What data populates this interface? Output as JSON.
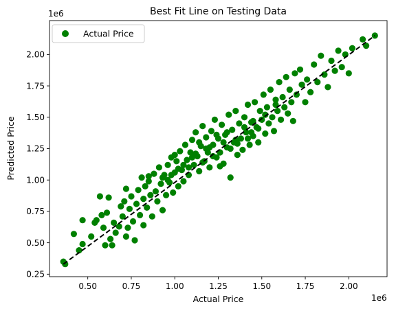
{
  "chart_data": {
    "type": "scatter",
    "title": "Best Fit Line on Testing Data",
    "xlabel": "Actual Price",
    "ylabel": "Predicted Price",
    "x_offset_label": "1e6",
    "y_offset_label": "1e6",
    "xlim": [
      0.28,
      2.22
    ],
    "ylim": [
      0.23,
      2.27
    ],
    "xticks": [
      0.5,
      0.75,
      1.0,
      1.25,
      1.5,
      1.75,
      2.0
    ],
    "xtick_labels": [
      "0.50",
      "0.75",
      "1.00",
      "1.25",
      "1.50",
      "1.75",
      "2.00"
    ],
    "yticks": [
      0.25,
      0.5,
      0.75,
      1.0,
      1.25,
      1.5,
      1.75,
      2.0
    ],
    "ytick_labels": [
      "0.25",
      "0.50",
      "0.75",
      "1.00",
      "1.25",
      "1.50",
      "1.75",
      "2.00"
    ],
    "grid": false,
    "legend": {
      "position": "upper-left",
      "entries": [
        "Actual Price"
      ]
    },
    "series": [
      {
        "name": "Actual Price",
        "color": "#008000",
        "points": [
          [
            0.36,
            0.35
          ],
          [
            0.37,
            0.33
          ],
          [
            0.42,
            0.57
          ],
          [
            0.45,
            0.44
          ],
          [
            0.47,
            0.49
          ],
          [
            0.47,
            0.68
          ],
          [
            0.52,
            0.55
          ],
          [
            0.54,
            0.66
          ],
          [
            0.55,
            0.68
          ],
          [
            0.57,
            0.87
          ],
          [
            0.58,
            0.72
          ],
          [
            0.59,
            0.62
          ],
          [
            0.6,
            0.48
          ],
          [
            0.61,
            0.74
          ],
          [
            0.62,
            0.86
          ],
          [
            0.63,
            0.53
          ],
          [
            0.64,
            0.48
          ],
          [
            0.65,
            0.66
          ],
          [
            0.66,
            0.58
          ],
          [
            0.68,
            0.63
          ],
          [
            0.69,
            0.79
          ],
          [
            0.7,
            0.71
          ],
          [
            0.71,
            0.83
          ],
          [
            0.72,
            0.55
          ],
          [
            0.72,
            0.93
          ],
          [
            0.73,
            0.62
          ],
          [
            0.74,
            0.77
          ],
          [
            0.75,
            0.87
          ],
          [
            0.76,
            0.67
          ],
          [
            0.77,
            0.52
          ],
          [
            0.78,
            0.81
          ],
          [
            0.79,
            0.92
          ],
          [
            0.8,
            0.72
          ],
          [
            0.81,
            1.02
          ],
          [
            0.82,
            0.85
          ],
          [
            0.82,
            0.64
          ],
          [
            0.83,
            0.95
          ],
          [
            0.84,
            0.78
          ],
          [
            0.85,
            0.99
          ],
          [
            0.86,
            0.88
          ],
          [
            0.87,
            0.71
          ],
          [
            0.88,
            1.05
          ],
          [
            0.89,
            0.91
          ],
          [
            0.9,
            0.83
          ],
          [
            0.91,
            1.1
          ],
          [
            0.92,
            0.97
          ],
          [
            0.93,
            0.76
          ],
          [
            0.94,
            1.04
          ],
          [
            0.95,
            0.88
          ],
          [
            0.96,
            1.12
          ],
          [
            0.97,
            0.98
          ],
          [
            0.98,
            1.18
          ],
          [
            0.99,
            0.9
          ],
          [
            1.0,
            1.06
          ],
          [
            1.01,
            1.15
          ],
          [
            1.02,
            0.95
          ],
          [
            1.03,
            1.23
          ],
          [
            1.04,
            1.08
          ],
          [
            1.05,
            0.99
          ],
          [
            1.06,
            1.28
          ],
          [
            1.07,
            1.16
          ],
          [
            1.08,
            1.04
          ],
          [
            1.09,
            1.22
          ],
          [
            1.1,
            1.32
          ],
          [
            1.11,
            1.12
          ],
          [
            1.12,
            1.38
          ],
          [
            1.13,
            1.19
          ],
          [
            1.14,
            1.07
          ],
          [
            1.15,
            1.27
          ],
          [
            1.16,
            1.43
          ],
          [
            1.17,
            1.15
          ],
          [
            1.18,
            1.34
          ],
          [
            1.19,
            1.22
          ],
          [
            1.2,
            1.1
          ],
          [
            1.21,
            1.39
          ],
          [
            1.22,
            1.28
          ],
          [
            1.23,
            1.48
          ],
          [
            1.24,
            1.18
          ],
          [
            1.25,
            1.33
          ],
          [
            1.26,
            1.22
          ],
          [
            1.27,
            1.44
          ],
          [
            1.28,
            1.13
          ],
          [
            1.29,
            1.36
          ],
          [
            1.3,
            1.26
          ],
          [
            1.31,
            1.52
          ],
          [
            1.32,
            1.02
          ],
          [
            1.33,
            1.4
          ],
          [
            1.34,
            1.3
          ],
          [
            1.35,
            1.55
          ],
          [
            1.36,
            1.2
          ],
          [
            1.37,
            1.45
          ],
          [
            1.38,
            1.33
          ],
          [
            1.39,
            1.24
          ],
          [
            1.4,
            1.5
          ],
          [
            1.41,
            1.38
          ],
          [
            1.42,
            1.6
          ],
          [
            1.43,
            1.28
          ],
          [
            1.44,
            1.46
          ],
          [
            1.45,
            1.35
          ],
          [
            1.46,
            1.62
          ],
          [
            1.47,
            1.42
          ],
          [
            1.48,
            1.3
          ],
          [
            1.49,
            1.55
          ],
          [
            1.5,
            1.48
          ],
          [
            1.51,
            1.68
          ],
          [
            1.52,
            1.37
          ],
          [
            1.53,
            1.58
          ],
          [
            1.54,
            1.45
          ],
          [
            1.55,
            1.72
          ],
          [
            1.56,
            1.5
          ],
          [
            1.57,
            1.39
          ],
          [
            1.58,
            1.64
          ],
          [
            1.59,
            1.55
          ],
          [
            1.6,
            1.78
          ],
          [
            1.61,
            1.48
          ],
          [
            1.62,
            1.66
          ],
          [
            1.63,
            1.58
          ],
          [
            1.64,
            1.82
          ],
          [
            1.65,
            1.53
          ],
          [
            1.66,
            1.72
          ],
          [
            1.67,
            1.62
          ],
          [
            1.68,
            1.47
          ],
          [
            1.69,
            1.85
          ],
          [
            1.7,
            1.68
          ],
          [
            1.72,
            1.88
          ],
          [
            1.73,
            1.76
          ],
          [
            1.75,
            1.62
          ],
          [
            1.76,
            1.8
          ],
          [
            1.78,
            1.7
          ],
          [
            1.8,
            1.92
          ],
          [
            1.82,
            1.78
          ],
          [
            1.84,
            1.99
          ],
          [
            1.86,
            1.84
          ],
          [
            1.88,
            1.74
          ],
          [
            1.9,
            1.95
          ],
          [
            1.92,
            1.87
          ],
          [
            1.94,
            2.03
          ],
          [
            1.96,
            1.9
          ],
          [
            1.98,
            2.0
          ],
          [
            2.0,
            1.85
          ],
          [
            2.02,
            2.05
          ],
          [
            2.08,
            2.12
          ],
          [
            2.1,
            2.07
          ],
          [
            2.15,
            2.15
          ],
          [
            0.85,
            1.03
          ],
          [
            0.93,
            1.02
          ],
          [
            1.0,
            1.2
          ],
          [
            1.05,
            1.12
          ],
          [
            1.12,
            1.21
          ],
          [
            1.18,
            1.25
          ],
          [
            1.22,
            1.19
          ],
          [
            1.28,
            1.3
          ],
          [
            1.35,
            1.32
          ],
          [
            1.4,
            1.42
          ],
          [
            1.45,
            1.47
          ],
          [
            1.52,
            1.52
          ],
          [
            1.58,
            1.6
          ],
          [
            1.26,
            1.11
          ],
          [
            1.14,
            1.3
          ],
          [
            0.96,
            1.0
          ],
          [
            1.08,
            1.1
          ],
          [
            1.3,
            1.38
          ],
          [
            1.36,
            1.29
          ],
          [
            1.44,
            1.38
          ],
          [
            1.2,
            1.26
          ],
          [
            1.24,
            1.36
          ],
          [
            1.16,
            1.14
          ],
          [
            1.1,
            1.18
          ],
          [
            0.98,
            1.04
          ],
          [
            1.02,
            1.09
          ],
          [
            1.32,
            1.25
          ],
          [
            1.42,
            1.33
          ],
          [
            1.48,
            1.41
          ]
        ]
      }
    ],
    "fit_line": {
      "from": [
        0.36,
        0.33
      ],
      "to": [
        2.15,
        2.15
      ],
      "color": "#000000",
      "style": "dashed"
    }
  }
}
